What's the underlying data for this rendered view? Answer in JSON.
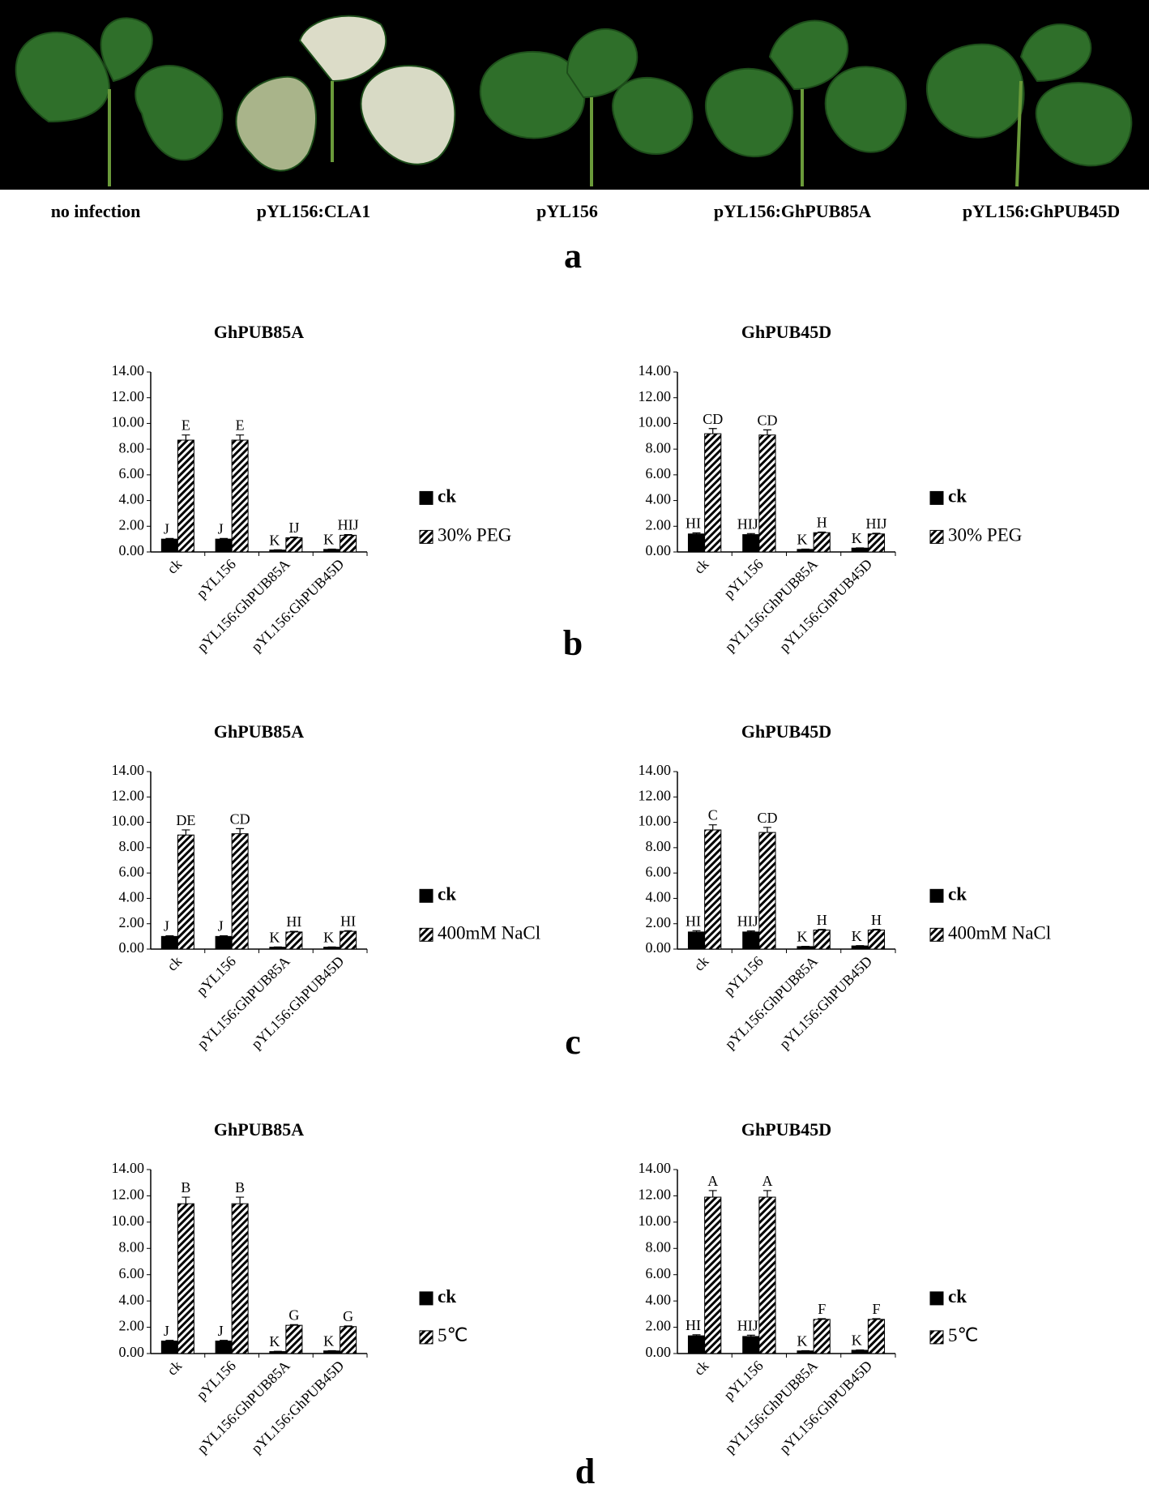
{
  "photo_labels": [
    "no infection",
    "pYL156:CLA1",
    "pYL156",
    "pYL156:GhPUB85A",
    "pYL156:GhPUB45D"
  ],
  "panel_letters": [
    "a",
    "b",
    "c",
    "d"
  ],
  "chart_data": [
    {
      "type": "bar",
      "title": "GhPUB85A",
      "categories": [
        "ck",
        "pYL156",
        "pYL156:GhPUB85A",
        "pYL156:GhPUB45D"
      ],
      "ylim": [
        0,
        14
      ],
      "yticks": [
        {
          "value": 0,
          "label": "0.00"
        },
        {
          "value": 2,
          "label": "2.00"
        },
        {
          "value": 4,
          "label": "4.00"
        },
        {
          "value": 6,
          "label": "6.00"
        },
        {
          "value": 8,
          "label": "8.00"
        },
        {
          "value": 10,
          "label": "10.00"
        },
        {
          "value": 12,
          "label": "12.00"
        },
        {
          "value": 14,
          "label": "14.00"
        }
      ],
      "series": [
        {
          "name": "ck",
          "color": "#000000",
          "pattern": "solid",
          "values": [
            1.0,
            1.0,
            0.15,
            0.2
          ],
          "errors": [
            0.05,
            0.05,
            0.02,
            0.02
          ],
          "annotations": [
            "J",
            "J",
            "K",
            "K"
          ]
        },
        {
          "name": "30% PEG",
          "color": "#000000",
          "pattern": "hatch",
          "values": [
            8.7,
            8.7,
            1.1,
            1.3
          ],
          "errors": [
            0.4,
            0.4,
            0.05,
            0.05
          ],
          "annotations": [
            "E",
            "E",
            "IJ",
            "HIJ"
          ]
        }
      ]
    },
    {
      "type": "bar",
      "title": "GhPUB45D",
      "categories": [
        "ck",
        "pYL156",
        "pYL156:GhPUB85A",
        "pYL156:GhPUB45D"
      ],
      "ylim": [
        0,
        14
      ],
      "yticks": [
        {
          "value": 0,
          "label": "0.00"
        },
        {
          "value": 2,
          "label": "2.00"
        },
        {
          "value": 4,
          "label": "4.00"
        },
        {
          "value": 6,
          "label": "6.00"
        },
        {
          "value": 8,
          "label": "8.00"
        },
        {
          "value": 10,
          "label": "10.00"
        },
        {
          "value": 12,
          "label": "12.00"
        },
        {
          "value": 14,
          "label": "14.00"
        }
      ],
      "series": [
        {
          "name": "ck",
          "color": "#000000",
          "pattern": "solid",
          "values": [
            1.4,
            1.35,
            0.2,
            0.3
          ],
          "errors": [
            0.08,
            0.08,
            0.02,
            0.02
          ],
          "annotations": [
            "HI",
            "HIJ",
            "K",
            "K"
          ]
        },
        {
          "name": "30% PEG",
          "color": "#000000",
          "pattern": "hatch",
          "values": [
            9.2,
            9.1,
            1.5,
            1.4
          ],
          "errors": [
            0.4,
            0.4,
            0.05,
            0.05
          ],
          "annotations": [
            "CD",
            "CD",
            "H",
            "HIJ"
          ]
        }
      ]
    },
    {
      "type": "bar",
      "title": "GhPUB85A",
      "categories": [
        "ck",
        "pYL156",
        "pYL156:GhPUB85A",
        "pYL156:GhPUB45D"
      ],
      "ylim": [
        0,
        14
      ],
      "yticks": [
        {
          "value": 0,
          "label": "0.00"
        },
        {
          "value": 2,
          "label": "2.00"
        },
        {
          "value": 4,
          "label": "4.00"
        },
        {
          "value": 6,
          "label": "6.00"
        },
        {
          "value": 8,
          "label": "8.00"
        },
        {
          "value": 10,
          "label": "10.00"
        },
        {
          "value": 12,
          "label": "12.00"
        },
        {
          "value": 14,
          "label": "14.00"
        }
      ],
      "series": [
        {
          "name": "ck",
          "color": "#000000",
          "pattern": "solid",
          "values": [
            1.0,
            1.0,
            0.15,
            0.15
          ],
          "errors": [
            0.05,
            0.05,
            0.02,
            0.02
          ],
          "annotations": [
            "J",
            "J",
            "K",
            "K"
          ]
        },
        {
          "name": "400mM NaCl",
          "color": "#000000",
          "pattern": "hatch",
          "values": [
            9.0,
            9.1,
            1.35,
            1.4
          ],
          "errors": [
            0.4,
            0.4,
            0.05,
            0.05
          ],
          "annotations": [
            "DE",
            "CD",
            "HI",
            "HI"
          ]
        }
      ]
    },
    {
      "type": "bar",
      "title": "GhPUB45D",
      "categories": [
        "ck",
        "pYL156",
        "pYL156:GhPUB85A",
        "pYL156:GhPUB45D"
      ],
      "ylim": [
        0,
        14
      ],
      "yticks": [
        {
          "value": 0,
          "label": "0.00"
        },
        {
          "value": 2,
          "label": "2.00"
        },
        {
          "value": 4,
          "label": "4.00"
        },
        {
          "value": 6,
          "label": "6.00"
        },
        {
          "value": 8,
          "label": "8.00"
        },
        {
          "value": 10,
          "label": "10.00"
        },
        {
          "value": 12,
          "label": "12.00"
        },
        {
          "value": 14,
          "label": "14.00"
        }
      ],
      "series": [
        {
          "name": "ck",
          "color": "#000000",
          "pattern": "solid",
          "values": [
            1.35,
            1.35,
            0.2,
            0.25
          ],
          "errors": [
            0.1,
            0.08,
            0.02,
            0.02
          ],
          "annotations": [
            "HI",
            "HIJ",
            "K",
            "K"
          ]
        },
        {
          "name": "400mM NaCl",
          "color": "#000000",
          "pattern": "hatch",
          "values": [
            9.4,
            9.2,
            1.5,
            1.5
          ],
          "errors": [
            0.4,
            0.4,
            0.05,
            0.05
          ],
          "annotations": [
            "C",
            "CD",
            "H",
            "H"
          ]
        }
      ]
    },
    {
      "type": "bar",
      "title": "GhPUB85A",
      "categories": [
        "ck",
        "pYL156",
        "pYL156:GhPUB85A",
        "pYL156:GhPUB45D"
      ],
      "ylim": [
        0,
        14
      ],
      "yticks": [
        {
          "value": 0,
          "label": "0.00"
        },
        {
          "value": 2,
          "label": "2.00"
        },
        {
          "value": 4,
          "label": "4.00"
        },
        {
          "value": 6,
          "label": "6.00"
        },
        {
          "value": 8,
          "label": "8.00"
        },
        {
          "value": 10,
          "label": "10.00"
        },
        {
          "value": 12,
          "label": "12.00"
        },
        {
          "value": 14,
          "label": "14.00"
        }
      ],
      "series": [
        {
          "name": "ck",
          "color": "#000000",
          "pattern": "solid",
          "values": [
            0.95,
            0.95,
            0.15,
            0.2
          ],
          "errors": [
            0.05,
            0.05,
            0.02,
            0.02
          ],
          "annotations": [
            "J",
            "J",
            "K",
            "K"
          ]
        },
        {
          "name": "5℃",
          "color": "#000000",
          "pattern": "hatch",
          "values": [
            11.4,
            11.4,
            2.15,
            2.05
          ],
          "errors": [
            0.5,
            0.5,
            0.05,
            0.05
          ],
          "annotations": [
            "B",
            "B",
            "G",
            "G"
          ]
        }
      ]
    },
    {
      "type": "bar",
      "title": "GhPUB45D",
      "categories": [
        "ck",
        "pYL156",
        "pYL156:GhPUB85A",
        "pYL156:GhPUB45D"
      ],
      "ylim": [
        0,
        14
      ],
      "yticks": [
        {
          "value": 0,
          "label": "0.00"
        },
        {
          "value": 2,
          "label": "2.00"
        },
        {
          "value": 4,
          "label": "4.00"
        },
        {
          "value": 6,
          "label": "6.00"
        },
        {
          "value": 8,
          "label": "8.00"
        },
        {
          "value": 10,
          "label": "10.00"
        },
        {
          "value": 12,
          "label": "12.00"
        },
        {
          "value": 14,
          "label": "14.00"
        }
      ],
      "series": [
        {
          "name": "ck",
          "color": "#000000",
          "pattern": "solid",
          "values": [
            1.35,
            1.3,
            0.2,
            0.25
          ],
          "errors": [
            0.08,
            0.1,
            0.02,
            0.02
          ],
          "annotations": [
            "HI",
            "HIJ",
            "K",
            "K"
          ]
        },
        {
          "name": "5℃",
          "color": "#000000",
          "pattern": "hatch",
          "values": [
            11.9,
            11.9,
            2.6,
            2.6
          ],
          "errors": [
            0.5,
            0.5,
            0.05,
            0.05
          ],
          "annotations": [
            "A",
            "A",
            "F",
            "F"
          ]
        }
      ]
    }
  ]
}
